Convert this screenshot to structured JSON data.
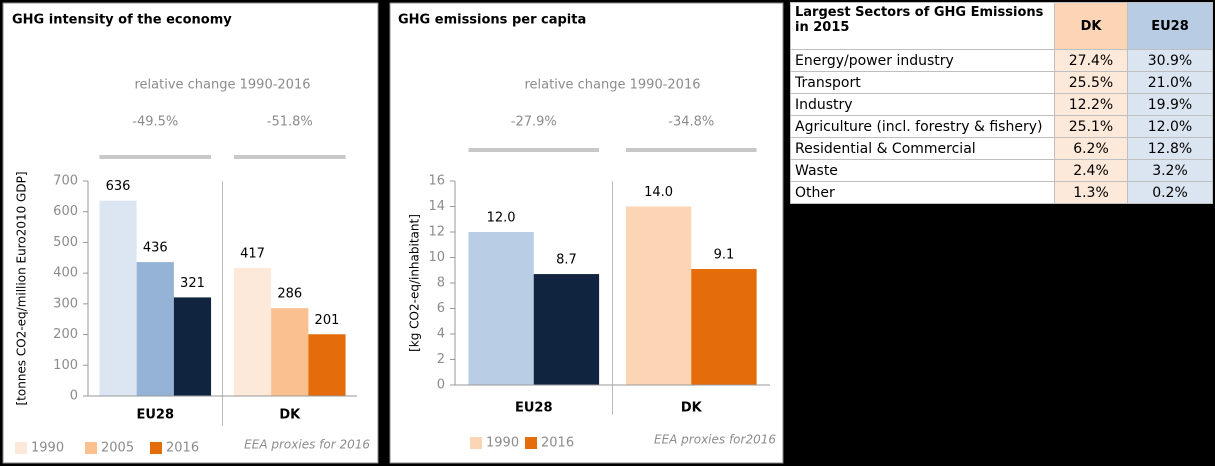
{
  "chart_data": [
    {
      "type": "bar",
      "title": "GHG intensity of the economy",
      "y_label": "[tonnes CO2-eq/million Euro2010 GDP]",
      "annotation_title": "relative change 1990-2016",
      "group_annotations": [
        "-49.5%",
        "-51.8%"
      ],
      "note": "EEA proxies for 2016",
      "categories": [
        "EU28",
        "DK"
      ],
      "series": [
        {
          "name": "1990",
          "color": [
            "#dce6f2",
            "#fde9d9"
          ],
          "values": [
            636,
            417
          ]
        },
        {
          "name": "2005",
          "color": [
            "#95b3d7",
            "#fac090"
          ],
          "values": [
            436,
            286
          ]
        },
        {
          "name": "2016",
          "color": [
            "#10243f",
            "#e46c0a"
          ],
          "values": [
            321,
            201
          ]
        }
      ],
      "ylim": [
        0,
        700
      ],
      "yticks": [
        0,
        100,
        200,
        300,
        400,
        500,
        600,
        700
      ]
    },
    {
      "type": "bar",
      "title": "GHG emissions per capita",
      "y_label": "[kg CO2-eq/inhabitant]",
      "annotation_title": "relative change 1990-2016",
      "group_annotations": [
        "-27.9%",
        "-34.8%"
      ],
      "note": "EEA proxies  for2016",
      "categories": [
        "EU28",
        "DK"
      ],
      "series": [
        {
          "name": "1990",
          "color": [
            "#b9cde5",
            "#fcd5b5"
          ],
          "values": [
            12,
            14
          ],
          "value_labels": [
            "12.0",
            "14.0"
          ]
        },
        {
          "name": "2016",
          "color": [
            "#10243f",
            "#e46c0a"
          ],
          "values": [
            8.7,
            9.1
          ],
          "value_labels": [
            "8.7",
            "9.1"
          ]
        }
      ],
      "ylim": [
        0,
        16
      ],
      "yticks": [
        0,
        2,
        4,
        6,
        8,
        10,
        12,
        14,
        16
      ]
    }
  ],
  "table": {
    "header": [
      "Largest Sectors of GHG Emissions in 2015",
      "DK",
      "EU28"
    ],
    "rows": [
      [
        "Energy/power industry",
        "27.4%",
        "30.9%"
      ],
      [
        "Transport",
        "25.5%",
        "21.0%"
      ],
      [
        "Industry",
        "12.2%",
        "19.9%"
      ],
      [
        "Agriculture (incl. forestry & fishery)",
        "25.1%",
        "12.0%"
      ],
      [
        "Residential & Commercial",
        "6.2%",
        "12.8%"
      ],
      [
        "Waste",
        "2.4%",
        "3.2%"
      ],
      [
        "Other",
        "1.3%",
        "0.2%"
      ]
    ]
  }
}
